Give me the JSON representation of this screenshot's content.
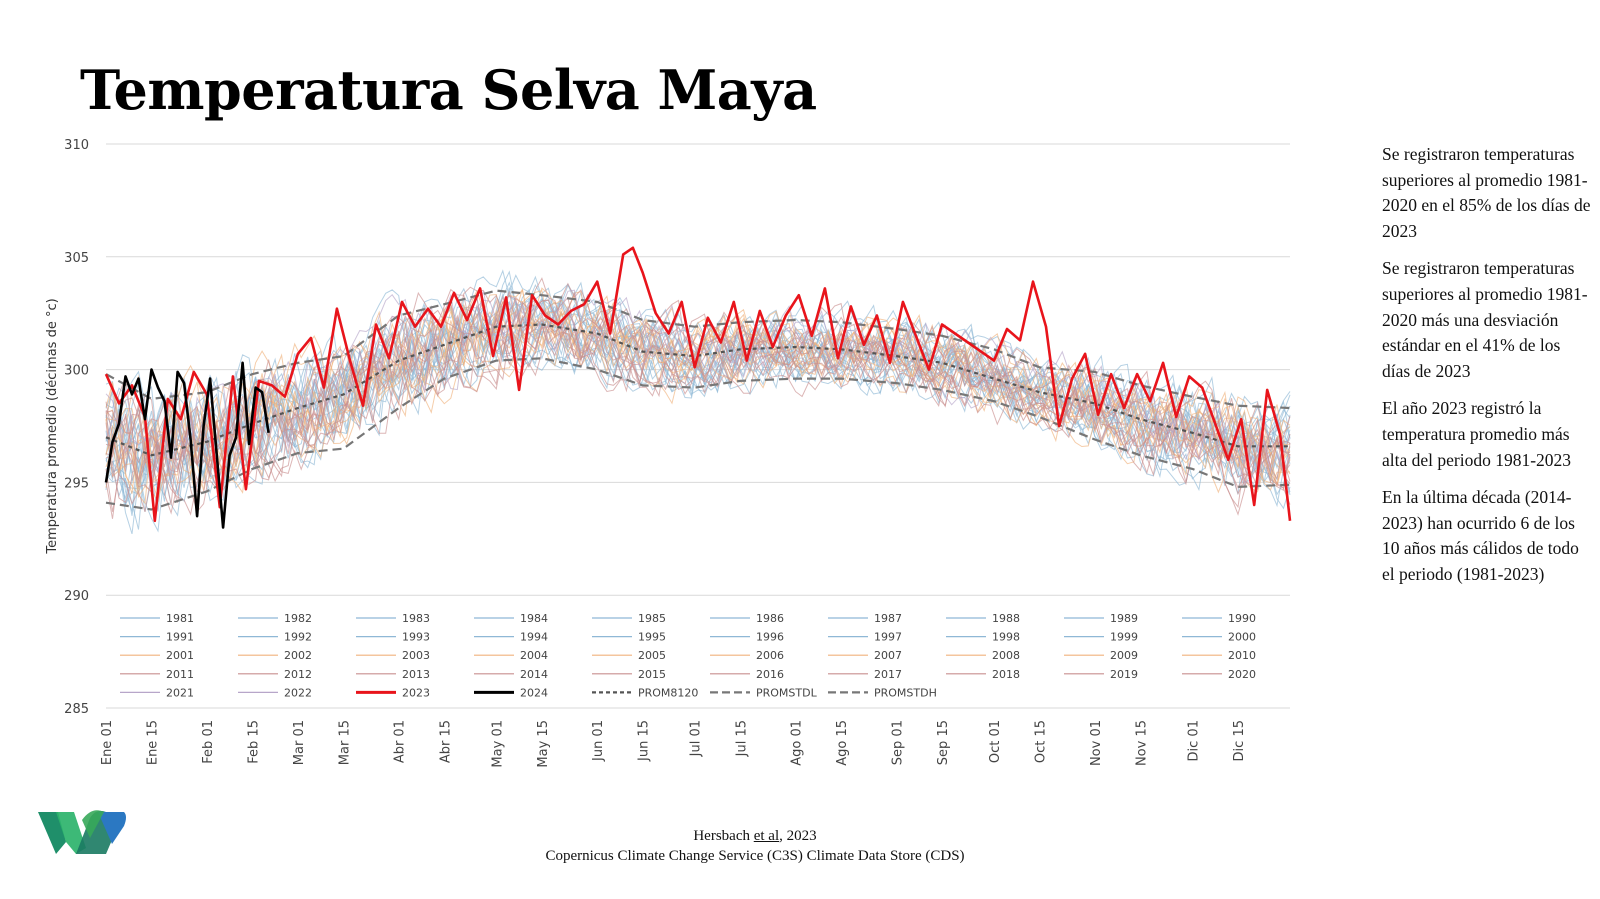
{
  "title": "Temperatura Selva Maya",
  "notes": [
    "Se registraron temperaturas superiores al promedio 1981-2020 en el 85% de los días de 2023",
    "Se registraron temperaturas superiores al promedio 1981-2020 más una desviación estándar en el 41% de los días de 2023",
    "El año 2023 registró la temperatura promedio más alta del periodo 1981-2023",
    "En la última década (2014-2023) han ocurrido 6 de los 10 años más cálidos de todo el periodo (1981-2023)"
  ],
  "source": {
    "author": "Hersbach",
    "etal": "et al",
    "year": ", 2023",
    "line2": "Copernicus Climate Change Service (C3S) Climate Data Store (CDS)"
  },
  "logo": "selva-maya-logo",
  "colors": {
    "y2023": "#e8141b",
    "y2024": "#000000",
    "avg": "#555555",
    "grid": "#d9d9d9",
    "blue_years": "#8fb8d6",
    "orange_years": "#f0b27d",
    "pink_years": "#c98f8f",
    "purple_years": "#b7a6c9"
  },
  "chart_data": {
    "type": "line",
    "ylabel": "Temperatura promedio (décimas de °c)",
    "ylim": [
      285,
      310
    ],
    "yticks": [
      285,
      290,
      295,
      300,
      305,
      310
    ],
    "xlim": [
      1,
      365
    ],
    "xticks": [
      {
        "label": "Ene 01",
        "day": 1
      },
      {
        "label": "Ene 15",
        "day": 15
      },
      {
        "label": "Feb 01",
        "day": 32
      },
      {
        "label": "Feb 15",
        "day": 46
      },
      {
        "label": "Mar 01",
        "day": 60
      },
      {
        "label": "Mar 15",
        "day": 74
      },
      {
        "label": "Abr 01",
        "day": 91
      },
      {
        "label": "Abr 15",
        "day": 105
      },
      {
        "label": "May 01",
        "day": 121
      },
      {
        "label": "May 15",
        "day": 135
      },
      {
        "label": "Jun 01",
        "day": 152
      },
      {
        "label": "Jun 15",
        "day": 166
      },
      {
        "label": "Jul 01",
        "day": 182
      },
      {
        "label": "Jul 15",
        "day": 196
      },
      {
        "label": "Ago 01",
        "day": 213
      },
      {
        "label": "Ago 15",
        "day": 227
      },
      {
        "label": "Sep 01",
        "day": 244
      },
      {
        "label": "Sep 15",
        "day": 258
      },
      {
        "label": "Oct 01",
        "day": 274
      },
      {
        "label": "Oct 15",
        "day": 288
      },
      {
        "label": "Nov 01",
        "day": 305
      },
      {
        "label": "Nov 15",
        "day": 319
      },
      {
        "label": "Dic 01",
        "day": 335
      },
      {
        "label": "Dic 15",
        "day": 349
      }
    ],
    "grid": true,
    "legend_position": "bottom-inside",
    "legend_entries": [
      "1981",
      "1982",
      "1983",
      "1984",
      "1985",
      "1986",
      "1987",
      "1988",
      "1989",
      "1990",
      "1991",
      "1992",
      "1993",
      "1994",
      "1995",
      "1996",
      "1997",
      "1998",
      "1999",
      "2000",
      "2001",
      "2002",
      "2003",
      "2004",
      "2005",
      "2006",
      "2007",
      "2008",
      "2009",
      "2010",
      "2011",
      "2012",
      "2013",
      "2014",
      "2015",
      "2016",
      "2017",
      "2018",
      "2019",
      "2020",
      "2021",
      "2022",
      "2023",
      "2024",
      "PROM8120",
      "PROMSTDL",
      "PROMSTDH"
    ],
    "series": [
      {
        "name": "PROM8120",
        "x": [
          1,
          15,
          32,
          46,
          60,
          74,
          91,
          105,
          121,
          135,
          152,
          166,
          182,
          196,
          213,
          227,
          244,
          258,
          274,
          288,
          305,
          319,
          335,
          349,
          365
        ],
        "values": [
          297.0,
          296.2,
          296.8,
          297.6,
          298.3,
          298.9,
          300.4,
          301.1,
          301.9,
          302.0,
          301.6,
          300.8,
          300.6,
          300.9,
          301.0,
          300.9,
          300.6,
          300.3,
          299.6,
          299.0,
          298.5,
          297.8,
          297.2,
          296.6,
          296.6
        ]
      },
      {
        "name": "PROMSTDL",
        "x": [
          1,
          15,
          32,
          46,
          60,
          74,
          91,
          105,
          121,
          135,
          152,
          166,
          182,
          196,
          213,
          227,
          244,
          258,
          274,
          288,
          305,
          319,
          335,
          349,
          365
        ],
        "values": [
          294.1,
          293.8,
          294.6,
          295.6,
          296.3,
          296.5,
          298.3,
          299.6,
          300.4,
          300.5,
          300.0,
          299.3,
          299.2,
          299.5,
          299.6,
          299.6,
          299.4,
          299.1,
          298.6,
          297.9,
          296.9,
          296.2,
          295.6,
          294.8,
          294.9
        ]
      },
      {
        "name": "PROMSTDH",
        "x": [
          1,
          15,
          32,
          46,
          60,
          74,
          91,
          105,
          121,
          135,
          152,
          166,
          182,
          196,
          213,
          227,
          244,
          258,
          274,
          288,
          305,
          319,
          335,
          349,
          365
        ],
        "values": [
          299.8,
          298.7,
          299.0,
          299.8,
          300.3,
          300.6,
          302.4,
          302.9,
          303.5,
          303.3,
          303.0,
          302.2,
          301.9,
          302.1,
          302.2,
          302.1,
          301.8,
          301.5,
          300.9,
          300.1,
          299.9,
          299.3,
          298.8,
          298.4,
          298.3
        ]
      },
      {
        "name": "2023",
        "x": [
          1,
          5,
          9,
          13,
          16,
          20,
          24,
          28,
          32,
          36,
          40,
          44,
          48,
          52,
          56,
          60,
          64,
          68,
          72,
          76,
          80,
          84,
          88,
          92,
          96,
          100,
          104,
          108,
          112,
          116,
          120,
          124,
          128,
          132,
          136,
          140,
          144,
          148,
          152,
          156,
          160,
          163,
          166,
          170,
          174,
          178,
          182,
          186,
          190,
          194,
          198,
          202,
          206,
          210,
          214,
          218,
          222,
          226,
          230,
          234,
          238,
          242,
          246,
          250,
          254,
          258,
          262,
          266,
          270,
          274,
          278,
          282,
          286,
          290,
          294,
          298,
          302,
          306,
          310,
          314,
          318,
          322,
          326,
          330,
          334,
          338,
          342,
          346,
          350,
          354,
          358,
          362,
          365
        ],
        "values": [
          299.8,
          298.5,
          299.3,
          297.9,
          293.3,
          298.7,
          297.8,
          299.9,
          298.9,
          293.9,
          299.7,
          294.7,
          299.5,
          299.3,
          298.8,
          300.7,
          301.4,
          299.2,
          302.7,
          300.4,
          298.4,
          302.0,
          300.5,
          303.0,
          301.9,
          302.7,
          301.9,
          303.4,
          302.2,
          303.6,
          300.6,
          303.2,
          299.1,
          303.3,
          302.4,
          302.0,
          302.6,
          302.9,
          303.9,
          301.6,
          305.1,
          305.4,
          304.3,
          302.5,
          301.6,
          303.0,
          300.1,
          302.3,
          301.2,
          303.0,
          300.4,
          302.6,
          301.0,
          302.4,
          303.3,
          301.5,
          303.6,
          300.5,
          302.8,
          301.1,
          302.4,
          300.3,
          303.0,
          301.5,
          300.0,
          302.0,
          301.6,
          301.2,
          300.8,
          300.4,
          301.8,
          301.3,
          303.9,
          301.9,
          297.5,
          299.6,
          300.7,
          298.0,
          299.8,
          298.3,
          299.8,
          298.6,
          300.3,
          297.9,
          299.7,
          299.2,
          297.6,
          296.0,
          297.8,
          294.0,
          299.1,
          297.1,
          293.3
        ]
      },
      {
        "name": "2024",
        "x": [
          1,
          3,
          5,
          7,
          9,
          11,
          13,
          15,
          17,
          19,
          21,
          23,
          25,
          27,
          29,
          31,
          33,
          35,
          37,
          39,
          41,
          43,
          45,
          47,
          49,
          51
        ],
        "values": [
          295.0,
          296.8,
          297.6,
          299.7,
          298.9,
          299.6,
          297.8,
          300.0,
          299.2,
          298.6,
          296.1,
          299.9,
          299.4,
          296.9,
          293.5,
          297.5,
          299.6,
          296.3,
          293.0,
          296.2,
          297.0,
          300.3,
          296.7,
          299.2,
          299.0,
          297.2
        ]
      }
    ]
  }
}
